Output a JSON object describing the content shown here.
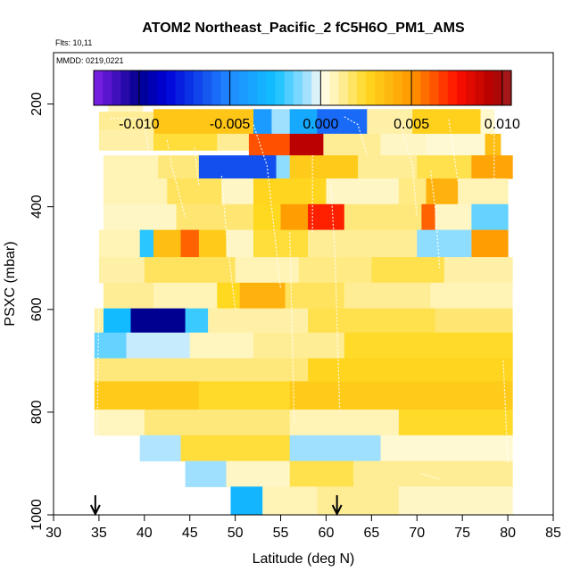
{
  "chart_data": {
    "type": "heatmap",
    "title": "ATOM2 Northeast_Pacific_2 fC5H6O_PM1_AMS",
    "flights_label": "Flts: 10,11",
    "dates_label": "MMDD: 0219,0221",
    "xlabel": "Latitude (deg N)",
    "ylabel": "PSXC (mbar)",
    "xlim": [
      30,
      85
    ],
    "ylim": [
      1000,
      100
    ],
    "xticks": [
      "30",
      "35",
      "40",
      "45",
      "50",
      "55",
      "60",
      "65",
      "70",
      "75",
      "80",
      "85"
    ],
    "yticks": [
      "200",
      "400",
      "600",
      "800",
      "1000"
    ],
    "colorbar": {
      "range": [
        -0.0125,
        0.0105
      ],
      "ticks": [
        -0.01,
        -0.005,
        0.0,
        0.005,
        0.01
      ],
      "tick_labels": [
        "-0.010",
        "-0.005",
        "0.000",
        "0.005",
        "0.010"
      ]
    },
    "markers": [
      {
        "name": "arrow",
        "lat": 34.6
      },
      {
        "name": "arrow",
        "lat": 61.2
      }
    ],
    "cells": [
      {
        "lat0": 36.0,
        "lat1": 39.8,
        "p0": 155,
        "p1": 215,
        "v": 0.0007
      },
      {
        "lat0": 35.0,
        "lat1": 41.0,
        "p0": 215,
        "p1": 250,
        "v": 0.0012
      },
      {
        "lat0": 41.0,
        "lat1": 52.0,
        "p0": 210,
        "p1": 258,
        "v": 0.0032
      },
      {
        "lat0": 52.0,
        "lat1": 54.0,
        "p0": 210,
        "p1": 258,
        "v": -0.0042
      },
      {
        "lat0": 54.0,
        "lat1": 56.0,
        "p0": 210,
        "p1": 258,
        "v": -0.0008
      },
      {
        "lat0": 56.0,
        "lat1": 59.0,
        "p0": 210,
        "p1": 258,
        "v": -0.0035
      },
      {
        "lat0": 59.0,
        "lat1": 64.5,
        "p0": 210,
        "p1": 258,
        "v": -0.0058
      },
      {
        "lat0": 64.5,
        "lat1": 69.5,
        "p0": 210,
        "p1": 258,
        "v": 0.001
      },
      {
        "lat0": 69.5,
        "lat1": 77.0,
        "p0": 210,
        "p1": 258,
        "v": 0.0028
      },
      {
        "lat0": 77.0,
        "lat1": 78.5,
        "p0": 210,
        "p1": 258,
        "v": 0.0005
      },
      {
        "lat0": 35.0,
        "lat1": 41.0,
        "p0": 250,
        "p1": 290,
        "v": 0.001
      },
      {
        "lat0": 41.0,
        "lat1": 48.0,
        "p0": 258,
        "p1": 290,
        "v": 0.0022
      },
      {
        "lat0": 48.0,
        "lat1": 51.5,
        "p0": 258,
        "p1": 290,
        "v": 0.0012
      },
      {
        "lat0": 51.5,
        "lat1": 56.0,
        "p0": 258,
        "p1": 300,
        "v": 0.0063
      },
      {
        "lat0": 56.0,
        "lat1": 59.7,
        "p0": 258,
        "p1": 300,
        "v": 0.0092
      },
      {
        "lat0": 59.7,
        "lat1": 66.0,
        "p0": 258,
        "p1": 300,
        "v": 0.0012
      },
      {
        "lat0": 66.0,
        "lat1": 71.0,
        "p0": 258,
        "p1": 300,
        "v": 0.0006
      },
      {
        "lat0": 71.0,
        "lat1": 77.5,
        "p0": 258,
        "p1": 300,
        "v": 0.0004
      },
      {
        "lat0": 77.5,
        "lat1": 79.2,
        "p0": 258,
        "p1": 300,
        "v": 0.0035
      },
      {
        "lat0": 35.5,
        "lat1": 41.5,
        "p0": 300,
        "p1": 345,
        "v": 0.0008
      },
      {
        "lat0": 41.5,
        "lat1": 46.0,
        "p0": 300,
        "p1": 345,
        "v": 0.0015
      },
      {
        "lat0": 46.0,
        "lat1": 54.5,
        "p0": 300,
        "p1": 345,
        "v": -0.0065
      },
      {
        "lat0": 54.5,
        "lat1": 56.0,
        "p0": 300,
        "p1": 345,
        "v": -0.001
      },
      {
        "lat0": 56.0,
        "lat1": 63.5,
        "p0": 300,
        "p1": 345,
        "v": 0.003
      },
      {
        "lat0": 63.5,
        "lat1": 70.0,
        "p0": 300,
        "p1": 345,
        "v": 0.0012
      },
      {
        "lat0": 70.0,
        "lat1": 76.0,
        "p0": 300,
        "p1": 345,
        "v": 0.002
      },
      {
        "lat0": 76.0,
        "lat1": 80.5,
        "p0": 300,
        "p1": 345,
        "v": 0.0045
      },
      {
        "lat0": 35.5,
        "lat1": 42.5,
        "p0": 345,
        "p1": 395,
        "v": 0.0008
      },
      {
        "lat0": 42.5,
        "lat1": 48.5,
        "p0": 345,
        "p1": 395,
        "v": 0.0018
      },
      {
        "lat0": 48.5,
        "lat1": 52.0,
        "p0": 345,
        "p1": 395,
        "v": 0.0006
      },
      {
        "lat0": 52.0,
        "lat1": 60.0,
        "p0": 345,
        "p1": 395,
        "v": 0.0026
      },
      {
        "lat0": 60.0,
        "lat1": 68.0,
        "p0": 345,
        "p1": 395,
        "v": 0.0006
      },
      {
        "lat0": 68.0,
        "lat1": 71.0,
        "p0": 345,
        "p1": 395,
        "v": 0.0014
      },
      {
        "lat0": 71.0,
        "lat1": 74.5,
        "p0": 345,
        "p1": 395,
        "v": 0.004
      },
      {
        "lat0": 74.5,
        "lat1": 80.0,
        "p0": 345,
        "p1": 395,
        "v": 0.0008
      },
      {
        "lat0": 35.5,
        "lat1": 43.5,
        "p0": 395,
        "p1": 445,
        "v": 0.0006
      },
      {
        "lat0": 43.5,
        "lat1": 52.0,
        "p0": 395,
        "p1": 445,
        "v": 0.0016
      },
      {
        "lat0": 52.0,
        "lat1": 55.0,
        "p0": 395,
        "p1": 445,
        "v": 0.0025
      },
      {
        "lat0": 55.0,
        "lat1": 58.0,
        "p0": 395,
        "p1": 445,
        "v": 0.0048
      },
      {
        "lat0": 58.0,
        "lat1": 62.0,
        "p0": 395,
        "p1": 445,
        "v": 0.0072
      },
      {
        "lat0": 62.0,
        "lat1": 70.5,
        "p0": 395,
        "p1": 445,
        "v": 0.0015
      },
      {
        "lat0": 70.5,
        "lat1": 72.0,
        "p0": 395,
        "p1": 445,
        "v": 0.006
      },
      {
        "lat0": 72.0,
        "lat1": 76.0,
        "p0": 395,
        "p1": 445,
        "v": 0.0006
      },
      {
        "lat0": 76.0,
        "lat1": 80.0,
        "p0": 395,
        "p1": 445,
        "v": -0.0015
      },
      {
        "lat0": 35.0,
        "lat1": 39.5,
        "p0": 445,
        "p1": 498,
        "v": 0.0008
      },
      {
        "lat0": 39.5,
        "lat1": 41.0,
        "p0": 445,
        "p1": 498,
        "v": -0.0022
      },
      {
        "lat0": 41.0,
        "lat1": 44.0,
        "p0": 445,
        "p1": 498,
        "v": 0.0035
      },
      {
        "lat0": 44.0,
        "lat1": 46.0,
        "p0": 445,
        "p1": 498,
        "v": 0.006
      },
      {
        "lat0": 46.0,
        "lat1": 49.0,
        "p0": 445,
        "p1": 498,
        "v": 0.003
      },
      {
        "lat0": 49.0,
        "lat1": 52.0,
        "p0": 445,
        "p1": 498,
        "v": 0.0006
      },
      {
        "lat0": 52.0,
        "lat1": 58.0,
        "p0": 445,
        "p1": 498,
        "v": 0.0022
      },
      {
        "lat0": 58.0,
        "lat1": 70.0,
        "p0": 445,
        "p1": 498,
        "v": 0.0012
      },
      {
        "lat0": 70.0,
        "lat1": 76.0,
        "p0": 445,
        "p1": 498,
        "v": -0.001
      },
      {
        "lat0": 76.0,
        "lat1": 80.0,
        "p0": 445,
        "p1": 498,
        "v": 0.0048
      },
      {
        "lat0": 35.0,
        "lat1": 40.0,
        "p0": 498,
        "p1": 548,
        "v": 0.001
      },
      {
        "lat0": 40.0,
        "lat1": 50.0,
        "p0": 498,
        "p1": 548,
        "v": 0.0018
      },
      {
        "lat0": 50.0,
        "lat1": 57.0,
        "p0": 498,
        "p1": 548,
        "v": 0.0008
      },
      {
        "lat0": 57.0,
        "lat1": 65.0,
        "p0": 498,
        "p1": 548,
        "v": 0.0014
      },
      {
        "lat0": 65.0,
        "lat1": 73.0,
        "p0": 498,
        "p1": 548,
        "v": 0.002
      },
      {
        "lat0": 73.0,
        "lat1": 80.5,
        "p0": 498,
        "p1": 548,
        "v": 0.001
      },
      {
        "lat0": 35.5,
        "lat1": 41.0,
        "p0": 548,
        "p1": 598,
        "v": 0.0012
      },
      {
        "lat0": 41.0,
        "lat1": 48.0,
        "p0": 548,
        "p1": 598,
        "v": 0.0008
      },
      {
        "lat0": 48.0,
        "lat1": 50.5,
        "p0": 548,
        "p1": 598,
        "v": 0.0025
      },
      {
        "lat0": 50.5,
        "lat1": 55.5,
        "p0": 548,
        "p1": 598,
        "v": 0.004
      },
      {
        "lat0": 55.5,
        "lat1": 62.0,
        "p0": 548,
        "p1": 598,
        "v": 0.0018
      },
      {
        "lat0": 62.0,
        "lat1": 71.5,
        "p0": 548,
        "p1": 598,
        "v": 0.0012
      },
      {
        "lat0": 71.5,
        "lat1": 80.5,
        "p0": 548,
        "p1": 598,
        "v": 0.0008
      },
      {
        "lat0": 34.5,
        "lat1": 35.5,
        "p0": 598,
        "p1": 645,
        "v": 0.001
      },
      {
        "lat0": 35.5,
        "lat1": 38.5,
        "p0": 598,
        "p1": 645,
        "v": -0.0028
      },
      {
        "lat0": 38.5,
        "lat1": 44.5,
        "p0": 598,
        "p1": 645,
        "v": -0.01
      },
      {
        "lat0": 44.5,
        "lat1": 47.0,
        "p0": 598,
        "p1": 645,
        "v": -0.002
      },
      {
        "lat0": 47.0,
        "lat1": 58.0,
        "p0": 598,
        "p1": 645,
        "v": 0.001
      },
      {
        "lat0": 58.0,
        "lat1": 72.0,
        "p0": 598,
        "p1": 645,
        "v": 0.002
      },
      {
        "lat0": 72.0,
        "lat1": 80.5,
        "p0": 598,
        "p1": 645,
        "v": 0.0016
      },
      {
        "lat0": 34.5,
        "lat1": 38.0,
        "p0": 645,
        "p1": 695,
        "v": -0.0015
      },
      {
        "lat0": 38.0,
        "lat1": 45.0,
        "p0": 645,
        "p1": 695,
        "v": -0.0004
      },
      {
        "lat0": 45.0,
        "lat1": 52.0,
        "p0": 645,
        "p1": 695,
        "v": 0.0007
      },
      {
        "lat0": 52.0,
        "lat1": 62.0,
        "p0": 645,
        "p1": 695,
        "v": 0.0012
      },
      {
        "lat0": 62.0,
        "lat1": 80.5,
        "p0": 645,
        "p1": 695,
        "v": 0.0024
      },
      {
        "lat0": 34.5,
        "lat1": 58.0,
        "p0": 695,
        "p1": 740,
        "v": 0.0015
      },
      {
        "lat0": 58.0,
        "lat1": 80.5,
        "p0": 695,
        "p1": 740,
        "v": 0.0026
      },
      {
        "lat0": 34.5,
        "lat1": 46.0,
        "p0": 740,
        "p1": 795,
        "v": 0.003
      },
      {
        "lat0": 46.0,
        "lat1": 56.0,
        "p0": 740,
        "p1": 795,
        "v": 0.0024
      },
      {
        "lat0": 56.0,
        "lat1": 80.5,
        "p0": 740,
        "p1": 795,
        "v": 0.003
      },
      {
        "lat0": 34.5,
        "lat1": 40.0,
        "p0": 795,
        "p1": 845,
        "v": 0.0007
      },
      {
        "lat0": 40.0,
        "lat1": 56.0,
        "p0": 795,
        "p1": 845,
        "v": 0.0015
      },
      {
        "lat0": 56.0,
        "lat1": 68.0,
        "p0": 795,
        "p1": 845,
        "v": 0.0008
      },
      {
        "lat0": 68.0,
        "lat1": 80.5,
        "p0": 795,
        "p1": 845,
        "v": 0.0024
      },
      {
        "lat0": 39.5,
        "lat1": 44.0,
        "p0": 845,
        "p1": 895,
        "v": -0.0006
      },
      {
        "lat0": 44.0,
        "lat1": 56.0,
        "p0": 845,
        "p1": 895,
        "v": 0.0022
      },
      {
        "lat0": 56.0,
        "lat1": 66.0,
        "p0": 845,
        "p1": 895,
        "v": -0.0008
      },
      {
        "lat0": 66.0,
        "lat1": 80.5,
        "p0": 845,
        "p1": 895,
        "v": 0.0004
      },
      {
        "lat0": 44.5,
        "lat1": 49.0,
        "p0": 895,
        "p1": 945,
        "v": -0.0008
      },
      {
        "lat0": 49.0,
        "lat1": 56.0,
        "p0": 895,
        "p1": 945,
        "v": 0.0006
      },
      {
        "lat0": 56.0,
        "lat1": 63.0,
        "p0": 895,
        "p1": 945,
        "v": 0.002
      },
      {
        "lat0": 63.0,
        "lat1": 80.5,
        "p0": 895,
        "p1": 945,
        "v": 0.0012
      },
      {
        "lat0": 49.5,
        "lat1": 53.0,
        "p0": 945,
        "p1": 1000,
        "v": -0.003
      },
      {
        "lat0": 53.0,
        "lat1": 59.0,
        "p0": 945,
        "p1": 1000,
        "v": 0.0008
      },
      {
        "lat0": 59.0,
        "lat1": 68.0,
        "p0": 945,
        "p1": 1000,
        "v": 0.0012
      },
      {
        "lat0": 68.0,
        "lat1": 80.5,
        "p0": 945,
        "p1": 1000,
        "v": 0.0006
      }
    ]
  }
}
